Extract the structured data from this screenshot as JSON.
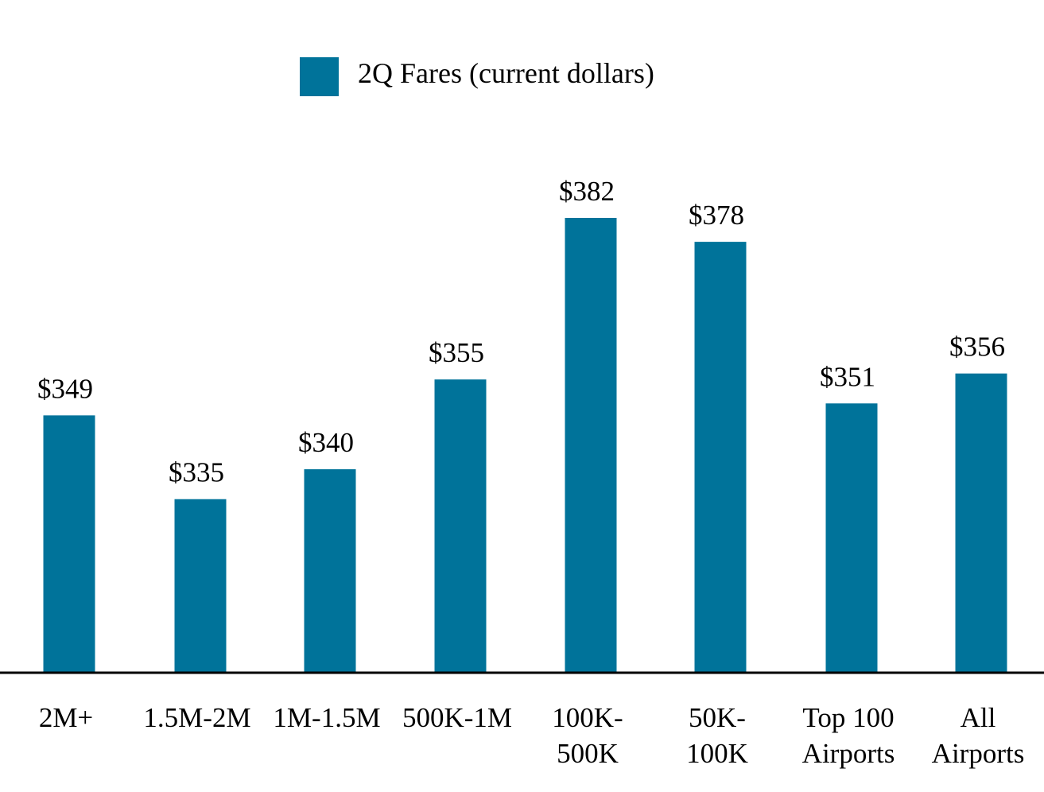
{
  "colors": {
    "bar": "#00739a",
    "axis": "#000000",
    "text": "#000000"
  },
  "chart_data": {
    "type": "bar",
    "title": "",
    "xlabel": "",
    "ylabel": "",
    "categories": [
      [
        "2M+"
      ],
      [
        "1.5M-2M"
      ],
      [
        "1M-1.5M"
      ],
      [
        "500K-1M"
      ],
      [
        "100K-",
        "500K"
      ],
      [
        "50K-",
        "100K"
      ],
      [
        "Top 100",
        "Airports"
      ],
      [
        "All",
        "Airports"
      ]
    ],
    "series": [
      {
        "name": "2Q Fares (current dollars)",
        "values": [
          349,
          335,
          340,
          355,
          382,
          378,
          351,
          356
        ],
        "labels": [
          "$349",
          "$335",
          "$340",
          "$355",
          "$382",
          "$378",
          "$351",
          "$356"
        ]
      }
    ],
    "ylim": [
      306,
      382
    ],
    "grid": false,
    "legend": "top-center"
  }
}
